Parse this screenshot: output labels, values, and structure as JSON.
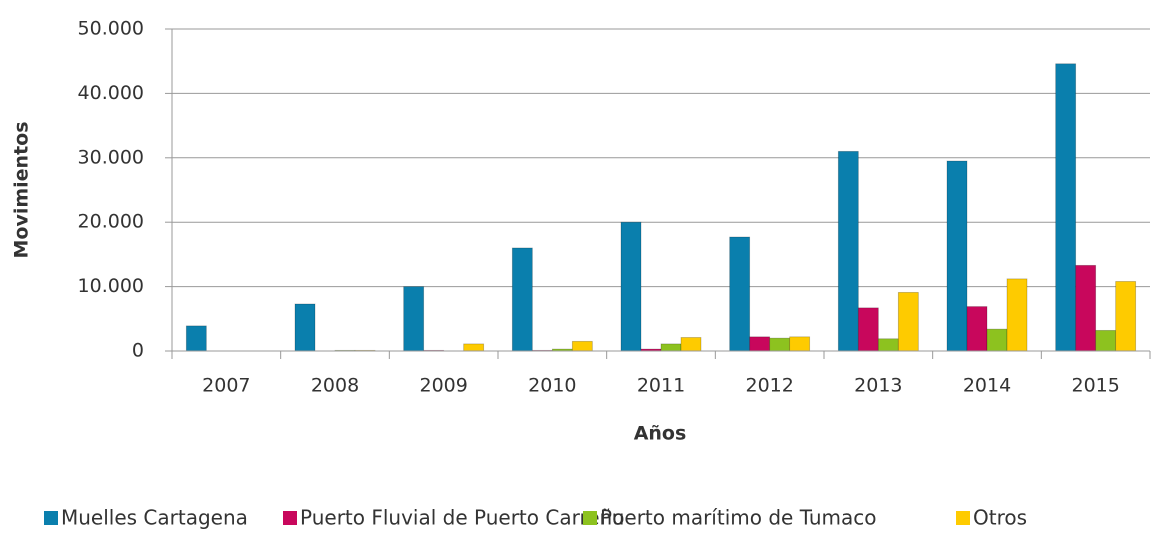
{
  "chart_data": {
    "type": "bar",
    "x_label": "Años",
    "y_label": "Movimientos",
    "categories": [
      "2007",
      "2008",
      "2009",
      "2010",
      "2011",
      "2012",
      "2013",
      "2014",
      "2015"
    ],
    "series": [
      {
        "name": "Muelles Cartagena",
        "color": "#0a7fad",
        "values": [
          3900,
          7300,
          10000,
          16000,
          20000,
          17700,
          31000,
          29500,
          44600
        ]
      },
      {
        "name": "Puerto Fluvial de Puerto Carreño",
        "color": "#c8075c",
        "values": [
          0,
          0,
          100,
          100,
          300,
          2200,
          6700,
          6900,
          13300
        ]
      },
      {
        "name": "Puerto marítimo de Tumaco",
        "color": "#8dc21f",
        "values": [
          0,
          100,
          0,
          300,
          1100,
          2000,
          1900,
          3400,
          3200
        ]
      },
      {
        "name": "Otros",
        "color": "#fecb00",
        "values": [
          0,
          100,
          1100,
          1500,
          2100,
          2200,
          9100,
          11200,
          10800
        ]
      }
    ],
    "ylim": [
      0,
      50000
    ],
    "yticks": [
      0,
      {
        "value": 10000,
        "label": "10.000"
      },
      {
        "value": 20000,
        "label": "20.000"
      },
      {
        "value": 30000,
        "label": "30.000"
      },
      {
        "value": 40000,
        "label": "40.000"
      },
      {
        "value": 50000,
        "label": "50.000"
      }
    ],
    "grid": true,
    "legend": "bottom"
  }
}
